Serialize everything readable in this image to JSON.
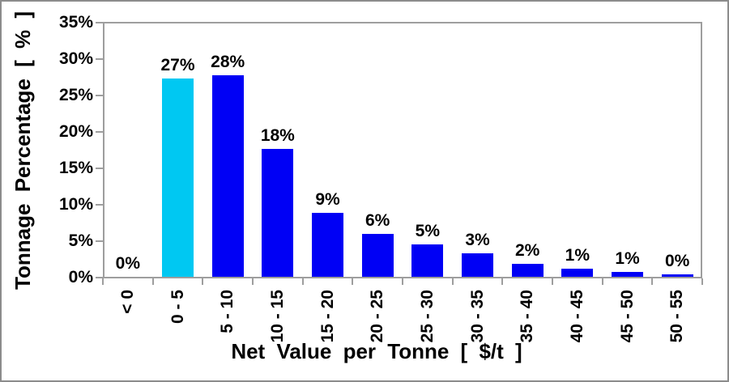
{
  "chart_data": {
    "type": "bar",
    "title": "",
    "xlabel": "Net Value per Tonne [ $/t ]",
    "ylabel": "Tonnage Percentage [ % ]",
    "categories": [
      "< 0",
      "0 - 5",
      "5 - 10",
      "10 - 15",
      "15 - 20",
      "20 - 25",
      "25 - 30",
      "30 - 35",
      "35 - 40",
      "40 - 45",
      "45 - 50",
      "50 - 55"
    ],
    "values": [
      0,
      27.2,
      27.7,
      17.6,
      8.8,
      5.9,
      4.5,
      3.2,
      1.8,
      1.1,
      0.7,
      0.3
    ],
    "value_labels": [
      "0%",
      "27%",
      "28%",
      "18%",
      "9%",
      "6%",
      "5%",
      "3%",
      "2%",
      "1%",
      "1%",
      "0%"
    ],
    "yticks": [
      {
        "value": 0,
        "label": "0%"
      },
      {
        "value": 5,
        "label": "5%"
      },
      {
        "value": 10,
        "label": "10%"
      },
      {
        "value": 15,
        "label": "15%"
      },
      {
        "value": 20,
        "label": "20%"
      },
      {
        "value": 25,
        "label": "25%"
      },
      {
        "value": 30,
        "label": "30%"
      },
      {
        "value": 35,
        "label": "35%"
      }
    ],
    "ylim": [
      0,
      35
    ],
    "grid": false,
    "legend": "none",
    "highlight_index": 1,
    "colors": {
      "bar_default": "#0000F5",
      "bar_highlight": "#00C8F2",
      "axis": "#9E9E9E",
      "text": "#000000",
      "background": "#FFFFFF"
    }
  }
}
